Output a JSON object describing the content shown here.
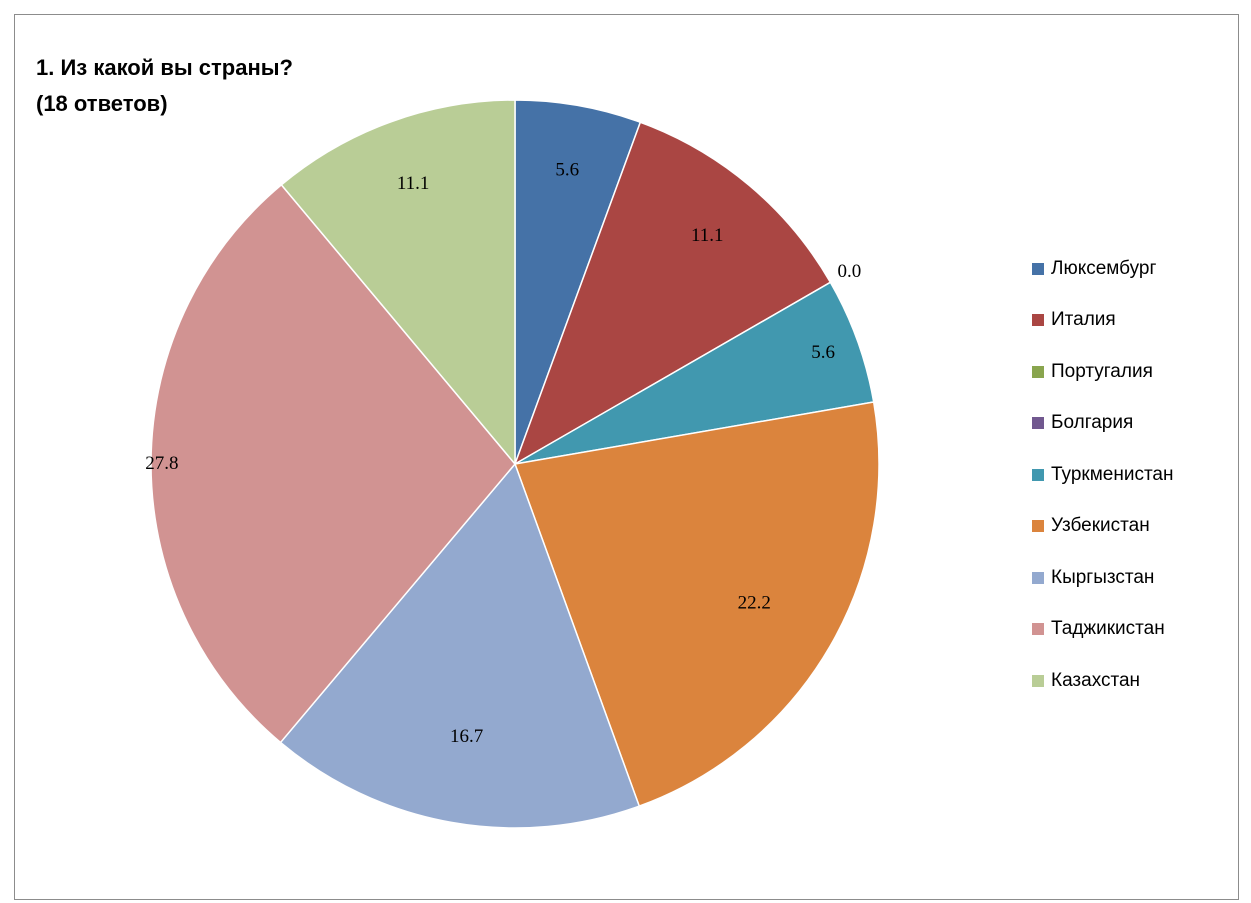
{
  "chart_data": {
    "type": "pie",
    "title": "1. Из какой вы страны?\n(18 ответов)",
    "categories": [
      "Люксембург",
      "Италия",
      "Португалия",
      "Болгария",
      "Туркменистан",
      "Узбекистан",
      "Кыргызстан",
      "Таджикистан",
      "Казахстан"
    ],
    "values": [
      5.6,
      11.1,
      0.0,
      0.0,
      5.6,
      22.2,
      16.7,
      27.8,
      11.1
    ],
    "data_labels": [
      "5.6",
      "11.1",
      "0.0",
      "",
      "5.6",
      "22.2",
      "16.7",
      "27.8",
      "11.1"
    ],
    "colors": [
      "#4572A7",
      "#AA4643",
      "#89A54E",
      "#71588F",
      "#4198AF",
      "#DB843D",
      "#93A9CF",
      "#D19392",
      "#B9CD96"
    ],
    "legend_position": "right",
    "start_angle": "top, clockwise"
  }
}
